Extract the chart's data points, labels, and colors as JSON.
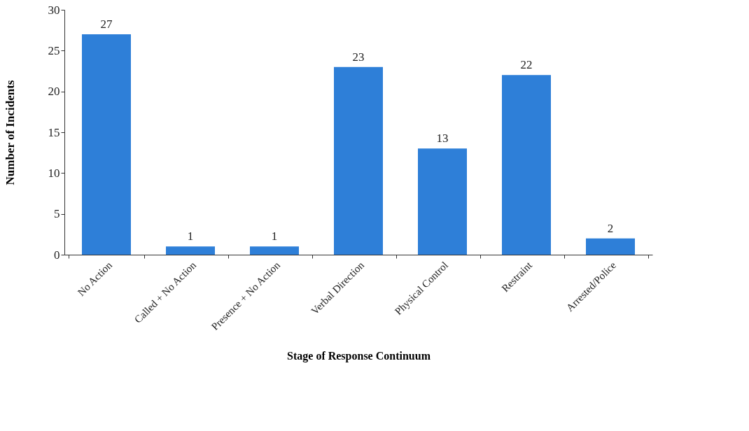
{
  "chart_data": {
    "type": "bar",
    "xlabel": "Stage of Response Continuum",
    "ylabel": "Number of Incidents",
    "categories": [
      "No Action",
      "Called + No Action",
      "Presence + No Action",
      "Verbal Direction",
      "Physical Control",
      "Restraint",
      "Arrested/Police"
    ],
    "values": [
      27,
      1,
      1,
      23,
      13,
      22,
      2
    ],
    "color": "#2e7fd8",
    "ylim": [
      0,
      30
    ],
    "yticks": [
      0,
      5,
      10,
      15,
      20,
      25,
      30
    ],
    "grid": false,
    "data_labels": true
  }
}
